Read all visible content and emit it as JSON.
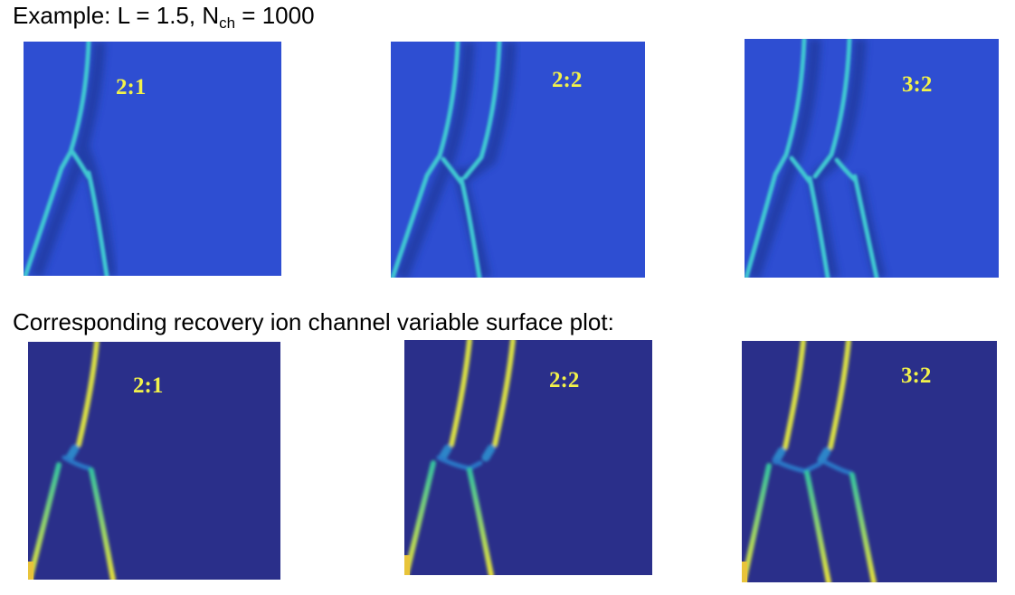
{
  "title": {
    "prefix": "Example: L = 1.5, N",
    "sub": "ch",
    "suffix": " = 1000"
  },
  "subtitle": "Corresponding recovery ion channel variable surface plot:",
  "top_row": [
    {
      "label": "2:1"
    },
    {
      "label": "2:2"
    },
    {
      "label": "3:2"
    }
  ],
  "bottom_row": [
    {
      "label": "2:1"
    },
    {
      "label": "2:2"
    },
    {
      "label": "3:2"
    }
  ],
  "colors": {
    "top_background": "#2e4ed2",
    "bottom_background": "#2a2f8a",
    "trace_top": "#3fc7d2",
    "trace_bottom": "#36c4a0",
    "trace_peak": "#e8e23a",
    "label": "#f2f24a"
  }
}
